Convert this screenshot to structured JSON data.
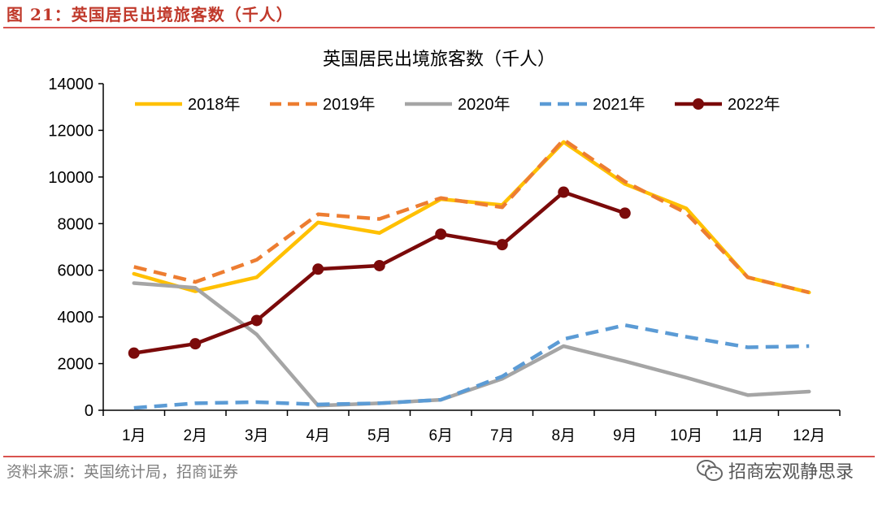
{
  "figure": {
    "label": "图 21：英国居民出境旅客数（千人）",
    "source": "资料来源：英国统计局，招商证券",
    "watermark": "招商宏观静思录"
  },
  "colors": {
    "frame_rule": "#d9534f",
    "label_text": "#c0392b",
    "source_text": "#7f7f7f"
  },
  "chart_data": {
    "type": "line",
    "title": "英国居民出境旅客数（千人）",
    "categories": [
      "1月",
      "2月",
      "3月",
      "4月",
      "5月",
      "6月",
      "7月",
      "8月",
      "9月",
      "10月",
      "11月",
      "12月"
    ],
    "ylim": [
      0,
      14000
    ],
    "yticks": [
      0,
      2000,
      4000,
      6000,
      8000,
      10000,
      12000,
      14000
    ],
    "legend_position": "top",
    "grid": false,
    "series": [
      {
        "name": "2018年",
        "color": "#FFC000",
        "style": "solid",
        "marker": false,
        "values": [
          5850,
          5100,
          5700,
          8050,
          7600,
          9050,
          8800,
          11500,
          9700,
          8650,
          5700,
          5050
        ]
      },
      {
        "name": "2019年",
        "color": "#ED7D31",
        "style": "dashed",
        "marker": false,
        "values": [
          6150,
          5500,
          6450,
          8400,
          8200,
          9100,
          8700,
          11600,
          9800,
          8450,
          5700,
          5050
        ]
      },
      {
        "name": "2020年",
        "color": "#A5A5A5",
        "style": "solid",
        "marker": false,
        "values": [
          5450,
          5250,
          3250,
          200,
          300,
          450,
          1350,
          2750,
          2100,
          1400,
          650,
          800
        ]
      },
      {
        "name": "2021年",
        "color": "#5B9BD5",
        "style": "dashed",
        "marker": false,
        "values": [
          100,
          300,
          350,
          250,
          300,
          450,
          1450,
          3050,
          3650,
          3150,
          2700,
          2750
        ]
      },
      {
        "name": "2022年",
        "color": "#7B0A0A",
        "style": "solid",
        "marker": true,
        "values": [
          2450,
          2850,
          3850,
          6050,
          6200,
          7550,
          7100,
          9350,
          8450,
          null,
          null,
          null
        ]
      }
    ]
  }
}
